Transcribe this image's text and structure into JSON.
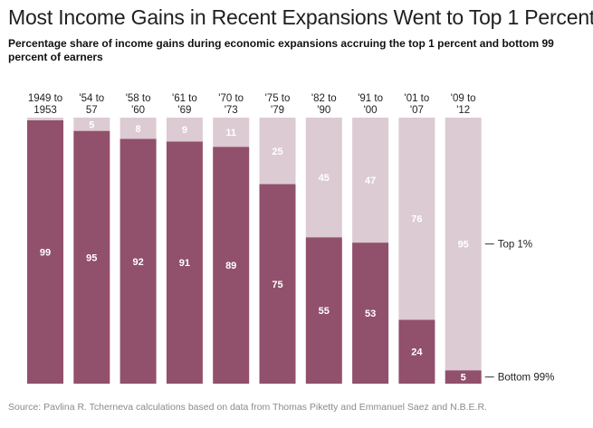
{
  "title": "Most Income Gains in Recent Expansions Went to Top 1 Percent",
  "subtitle": "Percentage share of income gains during economic expansions accruing the top 1 percent and bottom 99 percent of earners",
  "source": "Source: Pavlina R. Tcherneva calculations based on data from Thomas Piketty and Emmanuel Saez and N.B.E.R.",
  "chart_data": {
    "type": "bar",
    "stacked": true,
    "categories": [
      [
        "1949 to",
        "1953"
      ],
      [
        "'54 to",
        "57"
      ],
      [
        "'58 to",
        "'60"
      ],
      [
        "'61 to",
        "'69"
      ],
      [
        "'70 to",
        "'73"
      ],
      [
        "'75 to",
        "'79"
      ],
      [
        "'82 to",
        "'90"
      ],
      [
        "'91 to",
        "'00"
      ],
      [
        "'01 to",
        "'07"
      ],
      [
        "'09 to",
        "'12"
      ]
    ],
    "series": [
      {
        "name": "Bottom 99%",
        "color": "#91506b",
        "values": [
          99,
          95,
          92,
          91,
          89,
          75,
          55,
          53,
          24,
          5
        ],
        "labels": [
          "99",
          "95",
          "92",
          "91",
          "89",
          "75",
          "55",
          "53",
          "24",
          "5"
        ]
      },
      {
        "name": "Top 1%",
        "color": "#dccbd3",
        "values": [
          1,
          5,
          8,
          9,
          11,
          25,
          45,
          47,
          76,
          95
        ],
        "labels": [
          "",
          "5",
          "8",
          "9",
          "11",
          "25",
          "45",
          "47",
          "76",
          "95"
        ]
      }
    ],
    "ylim": [
      0,
      100
    ],
    "grid": false,
    "legend": "right, as direct labels"
  }
}
